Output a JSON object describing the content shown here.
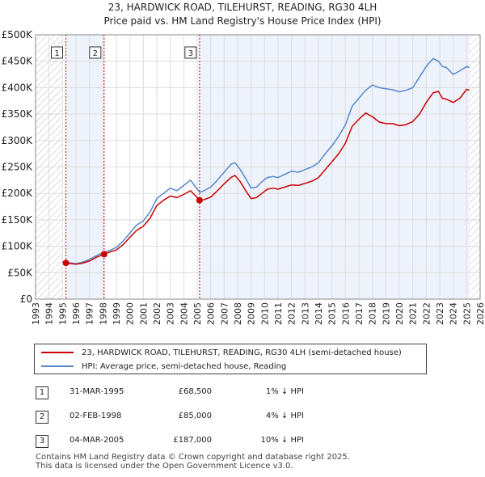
{
  "title_line1": "23, HARDWICK ROAD, TILEHURST, READING, RG30 4LH",
  "title_line2": "Price paid vs. HM Land Registry's House Price Index (HPI)",
  "legend": {
    "property": "23, HARDWICK ROAD, TILEHURST, READING, RG30 4LH (semi-detached house)",
    "hpi": "HPI: Average price, semi-detached house, Reading"
  },
  "transactions": [
    {
      "num": "1",
      "date": "31-MAR-1995",
      "price": "£68,500",
      "hpi": "1% ↓ HPI"
    },
    {
      "num": "2",
      "date": "02-FEB-1998",
      "price": "£85,000",
      "hpi": "4% ↓ HPI"
    },
    {
      "num": "3",
      "date": "04-MAR-2005",
      "price": "£187,000",
      "hpi": "10% ↓ HPI"
    }
  ],
  "footer_line1": "Contains HM Land Registry data © Crown copyright and database right 2025.",
  "footer_line2": "This data is licensed under the Open Government Licence v3.0.",
  "colors": {
    "property": "#cc0000",
    "hpi": "#5588cc",
    "shade": "#eef2fb",
    "hatch": "#bbbbbb"
  },
  "chart_data": {
    "type": "line",
    "title": "Price paid vs. HM Land Registry's House Price Index (HPI)",
    "xlim": [
      1993,
      2026
    ],
    "ylim": [
      0,
      500000
    ],
    "x_ticks": [
      1993,
      1994,
      1995,
      1996,
      1997,
      1998,
      1999,
      2000,
      2001,
      2002,
      2003,
      2004,
      2005,
      2006,
      2007,
      2008,
      2009,
      2010,
      2011,
      2012,
      2013,
      2014,
      2015,
      2016,
      2017,
      2018,
      2019,
      2020,
      2021,
      2022,
      2023,
      2024,
      2025,
      2026
    ],
    "y_ticks": [
      {
        "value": 0,
        "label": "£0"
      },
      {
        "value": 50000,
        "label": "£50K"
      },
      {
        "value": 100000,
        "label": "£100K"
      },
      {
        "value": 150000,
        "label": "£150K"
      },
      {
        "value": 200000,
        "label": "£200K"
      },
      {
        "value": 250000,
        "label": "£250K"
      },
      {
        "value": 300000,
        "label": "£300K"
      },
      {
        "value": 350000,
        "label": "£350K"
      },
      {
        "value": 400000,
        "label": "£400K"
      },
      {
        "value": 450000,
        "label": "£450K"
      },
      {
        "value": 500000,
        "label": "£500K"
      }
    ],
    "hatch_ranges": [
      [
        1993,
        1995.0
      ],
      [
        2025.2,
        2026
      ]
    ],
    "shaded_ranges": [
      [
        1995.25,
        1998.09
      ],
      [
        2005.17,
        2025.2
      ]
    ],
    "sales": [
      {
        "label": "1",
        "x": 1995.25,
        "y": 68500
      },
      {
        "label": "2",
        "x": 1998.09,
        "y": 85000
      },
      {
        "label": "3",
        "x": 2005.17,
        "y": 187000
      }
    ],
    "series": [
      {
        "name": "HPI: Average price, semi-detached house, Reading",
        "key": "hpi",
        "x": [
          1995.0,
          1995.5,
          1996.0,
          1996.5,
          1997.0,
          1997.5,
          1998.0,
          1998.5,
          1999.0,
          1999.5,
          2000.0,
          2000.5,
          2001.0,
          2001.5,
          2002.0,
          2002.5,
          2003.0,
          2003.5,
          2004.0,
          2004.5,
          2005.0,
          2005.2,
          2005.5,
          2006.0,
          2006.5,
          2007.0,
          2007.5,
          2007.8,
          2008.2,
          2008.6,
          2009.0,
          2009.4,
          2009.8,
          2010.2,
          2010.6,
          2011.0,
          2011.5,
          2012.0,
          2012.5,
          2013.0,
          2013.5,
          2014.0,
          2014.5,
          2015.0,
          2015.5,
          2016.0,
          2016.5,
          2017.0,
          2017.5,
          2018.0,
          2018.5,
          2019.0,
          2019.5,
          2020.0,
          2020.5,
          2021.0,
          2021.5,
          2022.0,
          2022.5,
          2022.9,
          2023.2,
          2023.5,
          2024.0,
          2024.5,
          2025.0,
          2025.2
        ],
        "values": [
          70000,
          69000,
          67000,
          70000,
          75000,
          82000,
          88000,
          92000,
          98000,
          110000,
          125000,
          140000,
          148000,
          165000,
          190000,
          200000,
          210000,
          205000,
          215000,
          225000,
          208000,
          202000,
          205000,
          212000,
          225000,
          240000,
          255000,
          258000,
          245000,
          228000,
          210000,
          212000,
          222000,
          230000,
          232000,
          230000,
          236000,
          242000,
          240000,
          245000,
          250000,
          258000,
          275000,
          290000,
          308000,
          330000,
          365000,
          380000,
          395000,
          405000,
          400000,
          398000,
          396000,
          392000,
          395000,
          400000,
          420000,
          440000,
          455000,
          450000,
          440000,
          438000,
          425000,
          432000,
          440000,
          438000
        ]
      },
      {
        "name": "23, HARDWICK ROAD, TILEHURST, READING, RG30 4LH (semi-detached house)",
        "key": "property",
        "x": [
          1995.25,
          1995.5,
          1996.0,
          1996.5,
          1997.0,
          1997.5,
          1998.09,
          1998.5,
          1999.0,
          1999.5,
          2000.0,
          2000.5,
          2001.0,
          2001.5,
          2002.0,
          2002.5,
          2003.0,
          2003.5,
          2004.0,
          2004.5,
          2005.0,
          2005.17,
          2005.5,
          2006.0,
          2006.5,
          2007.0,
          2007.5,
          2007.8,
          2008.2,
          2008.6,
          2009.0,
          2009.4,
          2009.8,
          2010.2,
          2010.6,
          2011.0,
          2011.5,
          2012.0,
          2012.5,
          2013.0,
          2013.5,
          2014.0,
          2014.5,
          2015.0,
          2015.5,
          2016.0,
          2016.5,
          2017.0,
          2017.5,
          2018.0,
          2018.5,
          2019.0,
          2019.5,
          2020.0,
          2020.5,
          2021.0,
          2021.5,
          2022.0,
          2022.5,
          2022.9,
          2023.2,
          2023.5,
          2024.0,
          2024.5,
          2025.0,
          2025.2
        ],
        "values": [
          68500,
          67500,
          66000,
          68000,
          72000,
          79000,
          85000,
          89000,
          93000,
          103000,
          117000,
          130000,
          138000,
          153000,
          177000,
          187000,
          195000,
          192000,
          198000,
          205000,
          192000,
          187000,
          188000,
          193000,
          205000,
          218000,
          230000,
          234000,
          222000,
          205000,
          190000,
          192000,
          200000,
          208000,
          210000,
          208000,
          212000,
          216000,
          215000,
          219000,
          223000,
          230000,
          245000,
          260000,
          275000,
          295000,
          327000,
          340000,
          352000,
          345000,
          335000,
          332000,
          332000,
          328000,
          330000,
          336000,
          350000,
          372000,
          390000,
          393000,
          380000,
          378000,
          372000,
          380000,
          397000,
          395000
        ]
      }
    ]
  }
}
